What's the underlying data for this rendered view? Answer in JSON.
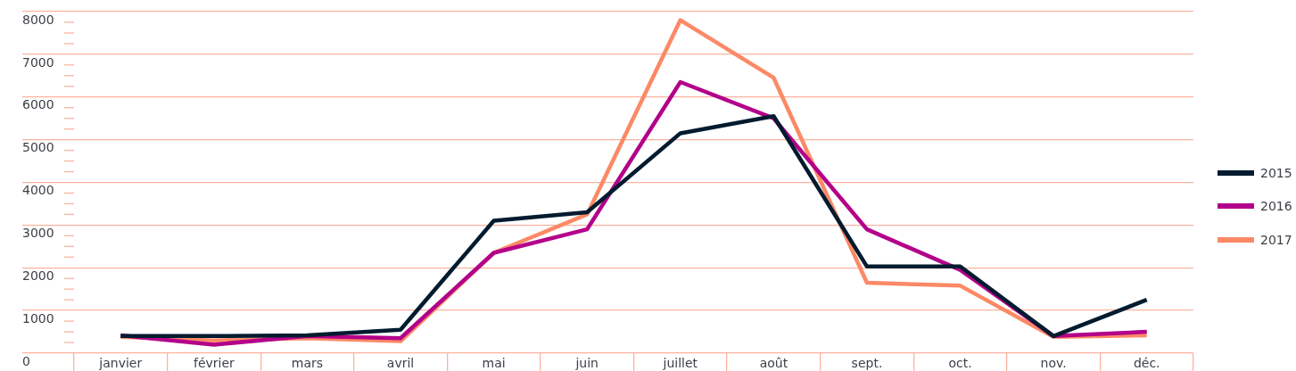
{
  "chart_data": {
    "type": "line",
    "categories": [
      "janvier",
      "février",
      "mars",
      "avril",
      "mai",
      "juin",
      "juillet",
      "août",
      "sept.",
      "oct.",
      "nov.",
      "déc."
    ],
    "series": [
      {
        "name": "2015",
        "color": "#021b2f",
        "values": [
          400,
          400,
          420,
          550,
          3100,
          3300,
          5150,
          5550,
          2030,
          2030,
          400,
          1250
        ]
      },
      {
        "name": "2016",
        "color": "#b3008a",
        "values": [
          420,
          200,
          400,
          350,
          2350,
          2900,
          6350,
          5500,
          2900,
          1950,
          400,
          500
        ]
      },
      {
        "name": "2017",
        "color": "#fc8966",
        "values": [
          380,
          300,
          350,
          280,
          2350,
          3250,
          7800,
          6450,
          1650,
          1580,
          380,
          420
        ]
      }
    ],
    "ylim": [
      0,
      8000
    ],
    "yticks": [
      0,
      {
        "value": 250,
        "label": null
      },
      {
        "value": 500,
        "label": null
      },
      {
        "value": 750,
        "label": null
      },
      1000,
      {
        "value": 1250,
        "label": null
      },
      {
        "value": 1500,
        "label": null
      },
      {
        "value": 1750,
        "label": null
      },
      2000,
      {
        "value": 2250,
        "label": null
      },
      {
        "value": 2500,
        "label": null
      },
      {
        "value": 2750,
        "label": null
      },
      3000,
      {
        "value": 3250,
        "label": null
      },
      {
        "value": 3500,
        "label": null
      },
      {
        "value": 3750,
        "label": null
      },
      4000,
      {
        "value": 4250,
        "label": null
      },
      {
        "value": 4500,
        "label": null
      },
      {
        "value": 4750,
        "label": null
      },
      5000,
      {
        "value": 5250,
        "label": null
      },
      {
        "value": 5500,
        "label": null
      },
      {
        "value": 5750,
        "label": null
      },
      6000,
      {
        "value": 6250,
        "label": null
      },
      {
        "value": 6500,
        "label": null
      },
      {
        "value": 6750,
        "label": null
      },
      7000,
      {
        "value": 7250,
        "label": null
      },
      {
        "value": 7500,
        "label": null
      },
      {
        "value": 7750,
        "label": null
      },
      8000
    ],
    "grid": "y",
    "legend": "right"
  }
}
